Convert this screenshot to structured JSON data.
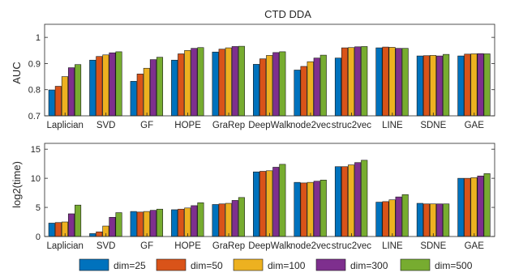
{
  "chart_data": [
    {
      "type": "bar",
      "title": "CTD DDA",
      "xlabel": "",
      "ylabel": "AUC",
      "ylim": [
        0.7,
        1.05
      ],
      "yticks": [
        0.7,
        0.8,
        0.9,
        1
      ],
      "ytick_labels": [
        "0.7",
        "0.8",
        "0.9",
        "1"
      ],
      "categories": [
        "Laplician",
        "SVD",
        "GF",
        "HOPE",
        "GraRep",
        "DeepWalk",
        "node2vec",
        "struc2vec",
        "LINE",
        "SDNE",
        "GAE"
      ],
      "series": [
        {
          "name": "dim=25",
          "values": [
            0.799,
            0.913,
            0.832,
            0.913,
            0.944,
            0.897,
            0.875,
            0.921,
            0.96,
            0.929,
            0.929
          ]
        },
        {
          "name": "dim=50",
          "values": [
            0.813,
            0.927,
            0.86,
            0.937,
            0.955,
            0.918,
            0.889,
            0.96,
            0.963,
            0.93,
            0.936
          ]
        },
        {
          "name": "dim=100",
          "values": [
            0.85,
            0.933,
            0.882,
            0.95,
            0.96,
            0.931,
            0.907,
            0.961,
            0.962,
            0.931,
            0.937
          ]
        },
        {
          "name": "dim=300",
          "values": [
            0.884,
            0.941,
            0.915,
            0.958,
            0.965,
            0.942,
            0.921,
            0.964,
            0.958,
            0.929,
            0.938
          ]
        },
        {
          "name": "dim=500",
          "values": [
            0.896,
            0.945,
            0.924,
            0.961,
            0.966,
            0.945,
            0.932,
            0.965,
            0.958,
            0.935,
            0.937
          ]
        }
      ],
      "grid": false,
      "legend": "bottom"
    },
    {
      "type": "bar",
      "title": "",
      "xlabel": "",
      "ylabel": "log2(time)",
      "ylim": [
        0,
        16
      ],
      "yticks": [
        0,
        5,
        10,
        15
      ],
      "ytick_labels": [
        "0",
        "5",
        "10",
        "15"
      ],
      "categories": [
        "Laplician",
        "SVD",
        "GF",
        "HOPE",
        "GraRep",
        "DeepWalk",
        "node2vec",
        "struc2vec",
        "LINE",
        "SDNE",
        "GAE"
      ],
      "series": [
        {
          "name": "dim=25",
          "values": [
            2.3,
            0.5,
            4.3,
            4.6,
            5.5,
            11.1,
            9.3,
            12.0,
            5.9,
            5.7,
            10.0
          ]
        },
        {
          "name": "dim=50",
          "values": [
            2.4,
            0.8,
            4.2,
            4.7,
            5.6,
            11.2,
            9.2,
            12.0,
            6.0,
            5.6,
            10.0
          ]
        },
        {
          "name": "dim=100",
          "values": [
            2.5,
            1.8,
            4.3,
            4.9,
            5.7,
            11.3,
            9.3,
            12.3,
            6.3,
            5.6,
            10.1
          ]
        },
        {
          "name": "dim=300",
          "values": [
            3.9,
            3.3,
            4.5,
            5.3,
            6.2,
            11.9,
            9.5,
            12.7,
            6.8,
            5.6,
            10.4
          ]
        },
        {
          "name": "dim=500",
          "values": [
            5.4,
            4.1,
            4.7,
            5.8,
            6.7,
            12.4,
            9.7,
            13.1,
            7.2,
            5.6,
            10.8
          ]
        }
      ],
      "grid": false,
      "legend": "bottom"
    }
  ],
  "legend": [
    "dim=25",
    "dim=50",
    "dim=100",
    "dim=300",
    "dim=500"
  ],
  "colors": [
    "#0072bd",
    "#d95319",
    "#edb120",
    "#7e2f8e",
    "#77ac30"
  ]
}
